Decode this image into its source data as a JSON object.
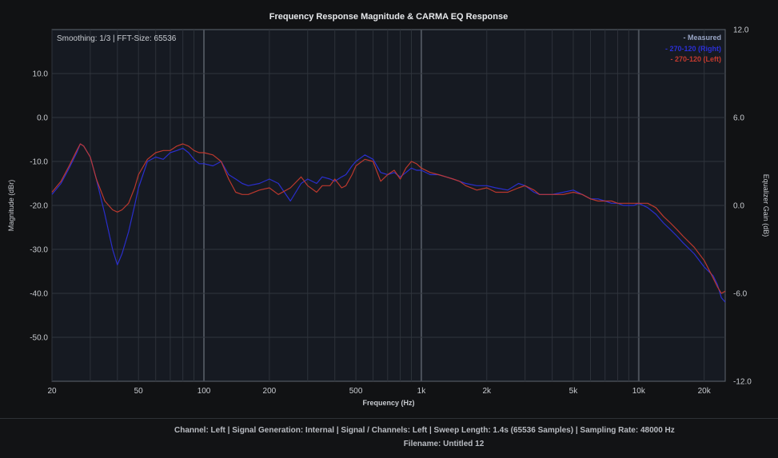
{
  "chart_data": {
    "type": "line",
    "title": "Frequency Response Magnitude & CARMA EQ Response",
    "xlabel": "Frequency (Hz)",
    "ylabel": "Magnitude (dBr)",
    "y2label": "Equalizer Gain (dB)",
    "xscale": "log",
    "xlim": [
      20,
      25000
    ],
    "ylim": [
      -60,
      20
    ],
    "y2lim": [
      -12.0,
      12.0
    ],
    "grid": true,
    "info_text": "Smoothing: 1/3 | FFT-Size: 65536",
    "x_ticks": [
      {
        "value": 20,
        "label": "20"
      },
      {
        "value": 50,
        "label": "50"
      },
      {
        "value": 100,
        "label": "100"
      },
      {
        "value": 200,
        "label": "200"
      },
      {
        "value": 500,
        "label": "500"
      },
      {
        "value": 1000,
        "label": "1k"
      },
      {
        "value": 2000,
        "label": "2k"
      },
      {
        "value": 5000,
        "label": "5k"
      },
      {
        "value": 10000,
        "label": "10k"
      },
      {
        "value": 20000,
        "label": "20k"
      }
    ],
    "y_ticks": [
      {
        "value": 10,
        "label": "10.0"
      },
      {
        "value": 0,
        "label": "0.0"
      },
      {
        "value": -10,
        "label": "-10.0"
      },
      {
        "value": -20,
        "label": "-20.0"
      },
      {
        "value": -30,
        "label": "-30.0"
      },
      {
        "value": -40,
        "label": "-40.0"
      },
      {
        "value": -50,
        "label": "-50.0"
      }
    ],
    "y2_ticks": [
      {
        "value": 12.0,
        "label": "12.0"
      },
      {
        "value": 6.0,
        "label": "6.0"
      },
      {
        "value": 0.0,
        "label": "0.0"
      },
      {
        "value": -6.0,
        "label": "-6.0"
      },
      {
        "value": -12.0,
        "label": "-12.0"
      }
    ],
    "legend_title": "- Measured",
    "legend_title_color": "#9aa6c6",
    "legend_position": "top-right",
    "series": [
      {
        "name": "- 270-120 (Right)",
        "color": "#2b2fd6",
        "x": [
          20,
          22,
          24,
          26,
          27,
          28,
          30,
          32,
          35,
          38,
          40,
          42,
          45,
          48,
          50,
          55,
          60,
          65,
          70,
          75,
          80,
          85,
          90,
          95,
          100,
          110,
          120,
          130,
          140,
          150,
          160,
          180,
          200,
          220,
          250,
          280,
          300,
          330,
          350,
          380,
          400,
          430,
          450,
          480,
          500,
          550,
          600,
          650,
          700,
          750,
          800,
          850,
          900,
          950,
          1000,
          1100,
          1200,
          1300,
          1400,
          1500,
          1600,
          1800,
          2000,
          2200,
          2500,
          2800,
          3000,
          3300,
          3500,
          4000,
          4500,
          5000,
          5500,
          6000,
          6500,
          7000,
          7500,
          8000,
          8500,
          9000,
          9500,
          10000,
          11000,
          12000,
          13000,
          14000,
          15000,
          16000,
          18000,
          20000,
          22000,
          23000,
          24000,
          25000
        ],
        "y": [
          -17.5,
          -15,
          -11.5,
          -8,
          -6,
          -6.5,
          -9,
          -14,
          -22,
          -30,
          -33.5,
          -31,
          -26,
          -20,
          -16,
          -10,
          -9,
          -9.5,
          -8,
          -7.5,
          -7,
          -8,
          -9.5,
          -10.5,
          -10.5,
          -11,
          -10,
          -13,
          -14,
          -15,
          -15.5,
          -15,
          -14,
          -15,
          -19,
          -15,
          -14,
          -15,
          -13.5,
          -14,
          -14.5,
          -13.5,
          -13,
          -11,
          -10,
          -8.5,
          -9.5,
          -12.5,
          -13,
          -12.5,
          -13.5,
          -12.5,
          -11.5,
          -12,
          -12,
          -13,
          -13,
          -13.5,
          -14,
          -14.5,
          -15,
          -15.5,
          -15.5,
          -16,
          -16.5,
          -15,
          -15.5,
          -17,
          -17.5,
          -17.5,
          -17,
          -16.5,
          -17.5,
          -18.5,
          -18.5,
          -19,
          -19.5,
          -19.5,
          -20,
          -20,
          -20,
          -19.5,
          -20.5,
          -22,
          -24,
          -25.5,
          -27,
          -28.5,
          -31,
          -34,
          -36,
          -38,
          -41,
          -42
        ]
      },
      {
        "name": "- 270-120 (Left)",
        "color": "#c43a2e",
        "x": [
          20,
          22,
          24,
          26,
          27,
          28,
          30,
          32,
          35,
          38,
          40,
          42,
          45,
          48,
          50,
          55,
          60,
          65,
          70,
          75,
          80,
          85,
          90,
          95,
          100,
          110,
          120,
          130,
          140,
          150,
          160,
          180,
          200,
          220,
          250,
          280,
          300,
          330,
          350,
          380,
          400,
          430,
          450,
          480,
          500,
          550,
          600,
          650,
          700,
          750,
          800,
          850,
          900,
          950,
          1000,
          1100,
          1200,
          1300,
          1400,
          1500,
          1600,
          1800,
          2000,
          2200,
          2500,
          2800,
          3000,
          3300,
          3500,
          4000,
          4500,
          5000,
          5500,
          6000,
          6500,
          7000,
          7500,
          8000,
          8500,
          9000,
          9500,
          10000,
          11000,
          12000,
          13000,
          14000,
          15000,
          16000,
          18000,
          20000,
          22000,
          23000,
          24000,
          25000
        ],
        "y": [
          -17,
          -14.5,
          -11,
          -7.5,
          -6,
          -6.5,
          -9,
          -14,
          -19,
          -21,
          -21.5,
          -21,
          -19.5,
          -16,
          -13,
          -9.5,
          -8,
          -7.5,
          -7.5,
          -6.5,
          -6,
          -6.5,
          -7.5,
          -8,
          -8,
          -8.5,
          -10,
          -14,
          -17,
          -17.5,
          -17.5,
          -16.5,
          -16,
          -17.5,
          -16,
          -13.5,
          -15.5,
          -17,
          -15.5,
          -15.5,
          -14,
          -16,
          -15.5,
          -13,
          -11,
          -9.5,
          -10,
          -14.5,
          -13,
          -12,
          -14,
          -11.5,
          -10,
          -10.5,
          -11.5,
          -12.5,
          -13,
          -13.5,
          -14,
          -14.5,
          -15.5,
          -16.5,
          -16,
          -17,
          -17,
          -16,
          -15.5,
          -16.5,
          -17.5,
          -17.5,
          -17.5,
          -17,
          -17.5,
          -18.5,
          -19,
          -19,
          -19,
          -19.5,
          -19.5,
          -19.5,
          -19.5,
          -19.5,
          -19.5,
          -20.5,
          -22.5,
          -24,
          -25.5,
          -27,
          -29.5,
          -32.5,
          -36.5,
          -38.5,
          -40,
          -39.5
        ]
      }
    ]
  },
  "footer": {
    "line1": "Channel: Left  |  Signal Generation: Internal  |  Signal / Channels: Left  |  Sweep Length: 1.4s (65536 Samples)  |  Sampling Rate: 48000 Hz",
    "line2": "Filename: Untitled 12"
  }
}
